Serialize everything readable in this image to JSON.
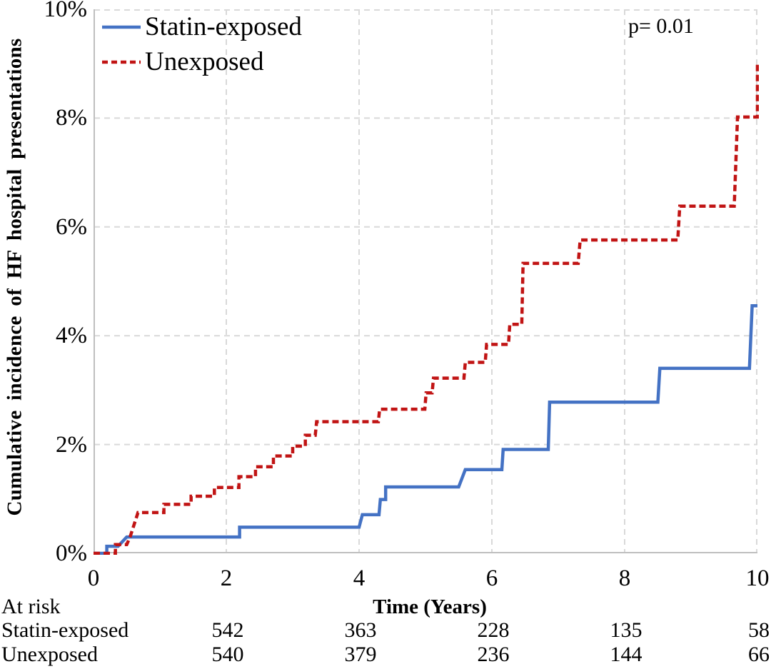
{
  "figure": {
    "p_value_label": "p= 0.01"
  },
  "legend": {
    "items": [
      {
        "label": "Statin-exposed",
        "color": "#4472C4",
        "style": "solid"
      },
      {
        "label": "Unexposed",
        "color": "#C11414",
        "style": "dashed"
      }
    ]
  },
  "at_risk_table": {
    "title": "At risk",
    "value_times": [
      2,
      4,
      6,
      8,
      10
    ],
    "rows": [
      {
        "label": "Statin-exposed",
        "values": [
          "542",
          "363",
          "228",
          "135",
          "58"
        ]
      },
      {
        "label": "Unexposed",
        "values": [
          "540",
          "379",
          "236",
          "144",
          "66"
        ]
      }
    ]
  },
  "chart_data": {
    "type": "line",
    "subtype": "step",
    "title": "",
    "xlabel": "Time (Years)",
    "ylabel": "Cumulative incidence of HF hospital presentations",
    "xlim": [
      0,
      10
    ],
    "ylim": [
      0,
      10
    ],
    "x_ticks": [
      0,
      2,
      4,
      6,
      8,
      10
    ],
    "x_tick_labels": [
      "0",
      "2",
      "4",
      "6",
      "8",
      "10"
    ],
    "y_ticks": [
      0,
      2,
      4,
      6,
      8,
      10
    ],
    "y_tick_labels": [
      "0%",
      "2%",
      "4%",
      "6%",
      "8%",
      "10%"
    ],
    "grid": "dashed",
    "grid_color": "#D9D9D9",
    "axis_color": "#BFBFBF",
    "legend_position": "top-left-inside",
    "annotation": {
      "text": "p= 0.01",
      "position": "top-right"
    },
    "series": [
      {
        "name": "Statin-exposed",
        "color": "#4472C4",
        "style": "solid",
        "points": [
          [
            0,
            0
          ],
          [
            0.2,
            0
          ],
          [
            0.2,
            0.13
          ],
          [
            0.37,
            0.13
          ],
          [
            0.5,
            0.3
          ],
          [
            2.2,
            0.3
          ],
          [
            2.2,
            0.48
          ],
          [
            4.0,
            0.48
          ],
          [
            4.05,
            0.71
          ],
          [
            4.3,
            0.71
          ],
          [
            4.32,
            0.99
          ],
          [
            4.4,
            0.99
          ],
          [
            4.4,
            1.22
          ],
          [
            5.5,
            1.22
          ],
          [
            5.6,
            1.54
          ],
          [
            6.15,
            1.54
          ],
          [
            6.17,
            1.91
          ],
          [
            6.85,
            1.91
          ],
          [
            6.87,
            2.78
          ],
          [
            8.5,
            2.78
          ],
          [
            8.53,
            3.4
          ],
          [
            9.88,
            3.4
          ],
          [
            9.92,
            4.55
          ],
          [
            10,
            4.55
          ]
        ]
      },
      {
        "name": "Unexposed",
        "color": "#C11414",
        "style": "dashed",
        "points": [
          [
            0,
            0
          ],
          [
            0.33,
            0
          ],
          [
            0.33,
            0.16
          ],
          [
            0.5,
            0.16
          ],
          [
            0.55,
            0.3
          ],
          [
            0.67,
            0.75
          ],
          [
            1.06,
            0.75
          ],
          [
            1.06,
            0.9
          ],
          [
            1.47,
            0.9
          ],
          [
            1.47,
            1.05
          ],
          [
            1.82,
            1.05
          ],
          [
            1.82,
            1.21
          ],
          [
            2.19,
            1.21
          ],
          [
            2.19,
            1.41
          ],
          [
            2.44,
            1.41
          ],
          [
            2.44,
            1.59
          ],
          [
            2.71,
            1.59
          ],
          [
            2.71,
            1.79
          ],
          [
            3.0,
            1.79
          ],
          [
            3.0,
            1.97
          ],
          [
            3.19,
            1.97
          ],
          [
            3.19,
            2.17
          ],
          [
            3.34,
            2.17
          ],
          [
            3.36,
            2.42
          ],
          [
            4.29,
            2.42
          ],
          [
            4.31,
            2.65
          ],
          [
            4.99,
            2.65
          ],
          [
            5.01,
            2.95
          ],
          [
            5.1,
            2.95
          ],
          [
            5.12,
            3.22
          ],
          [
            5.58,
            3.22
          ],
          [
            5.6,
            3.51
          ],
          [
            5.9,
            3.51
          ],
          [
            5.92,
            3.84
          ],
          [
            6.25,
            3.84
          ],
          [
            6.27,
            4.21
          ],
          [
            6.45,
            4.21
          ],
          [
            6.47,
            5.33
          ],
          [
            7.3,
            5.33
          ],
          [
            7.33,
            5.76
          ],
          [
            8.8,
            5.76
          ],
          [
            8.83,
            6.38
          ],
          [
            9.65,
            6.38
          ],
          [
            9.7,
            8.02
          ],
          [
            9.98,
            8.02
          ],
          [
            10,
            8.02
          ],
          [
            10,
            9.04
          ]
        ]
      }
    ]
  }
}
